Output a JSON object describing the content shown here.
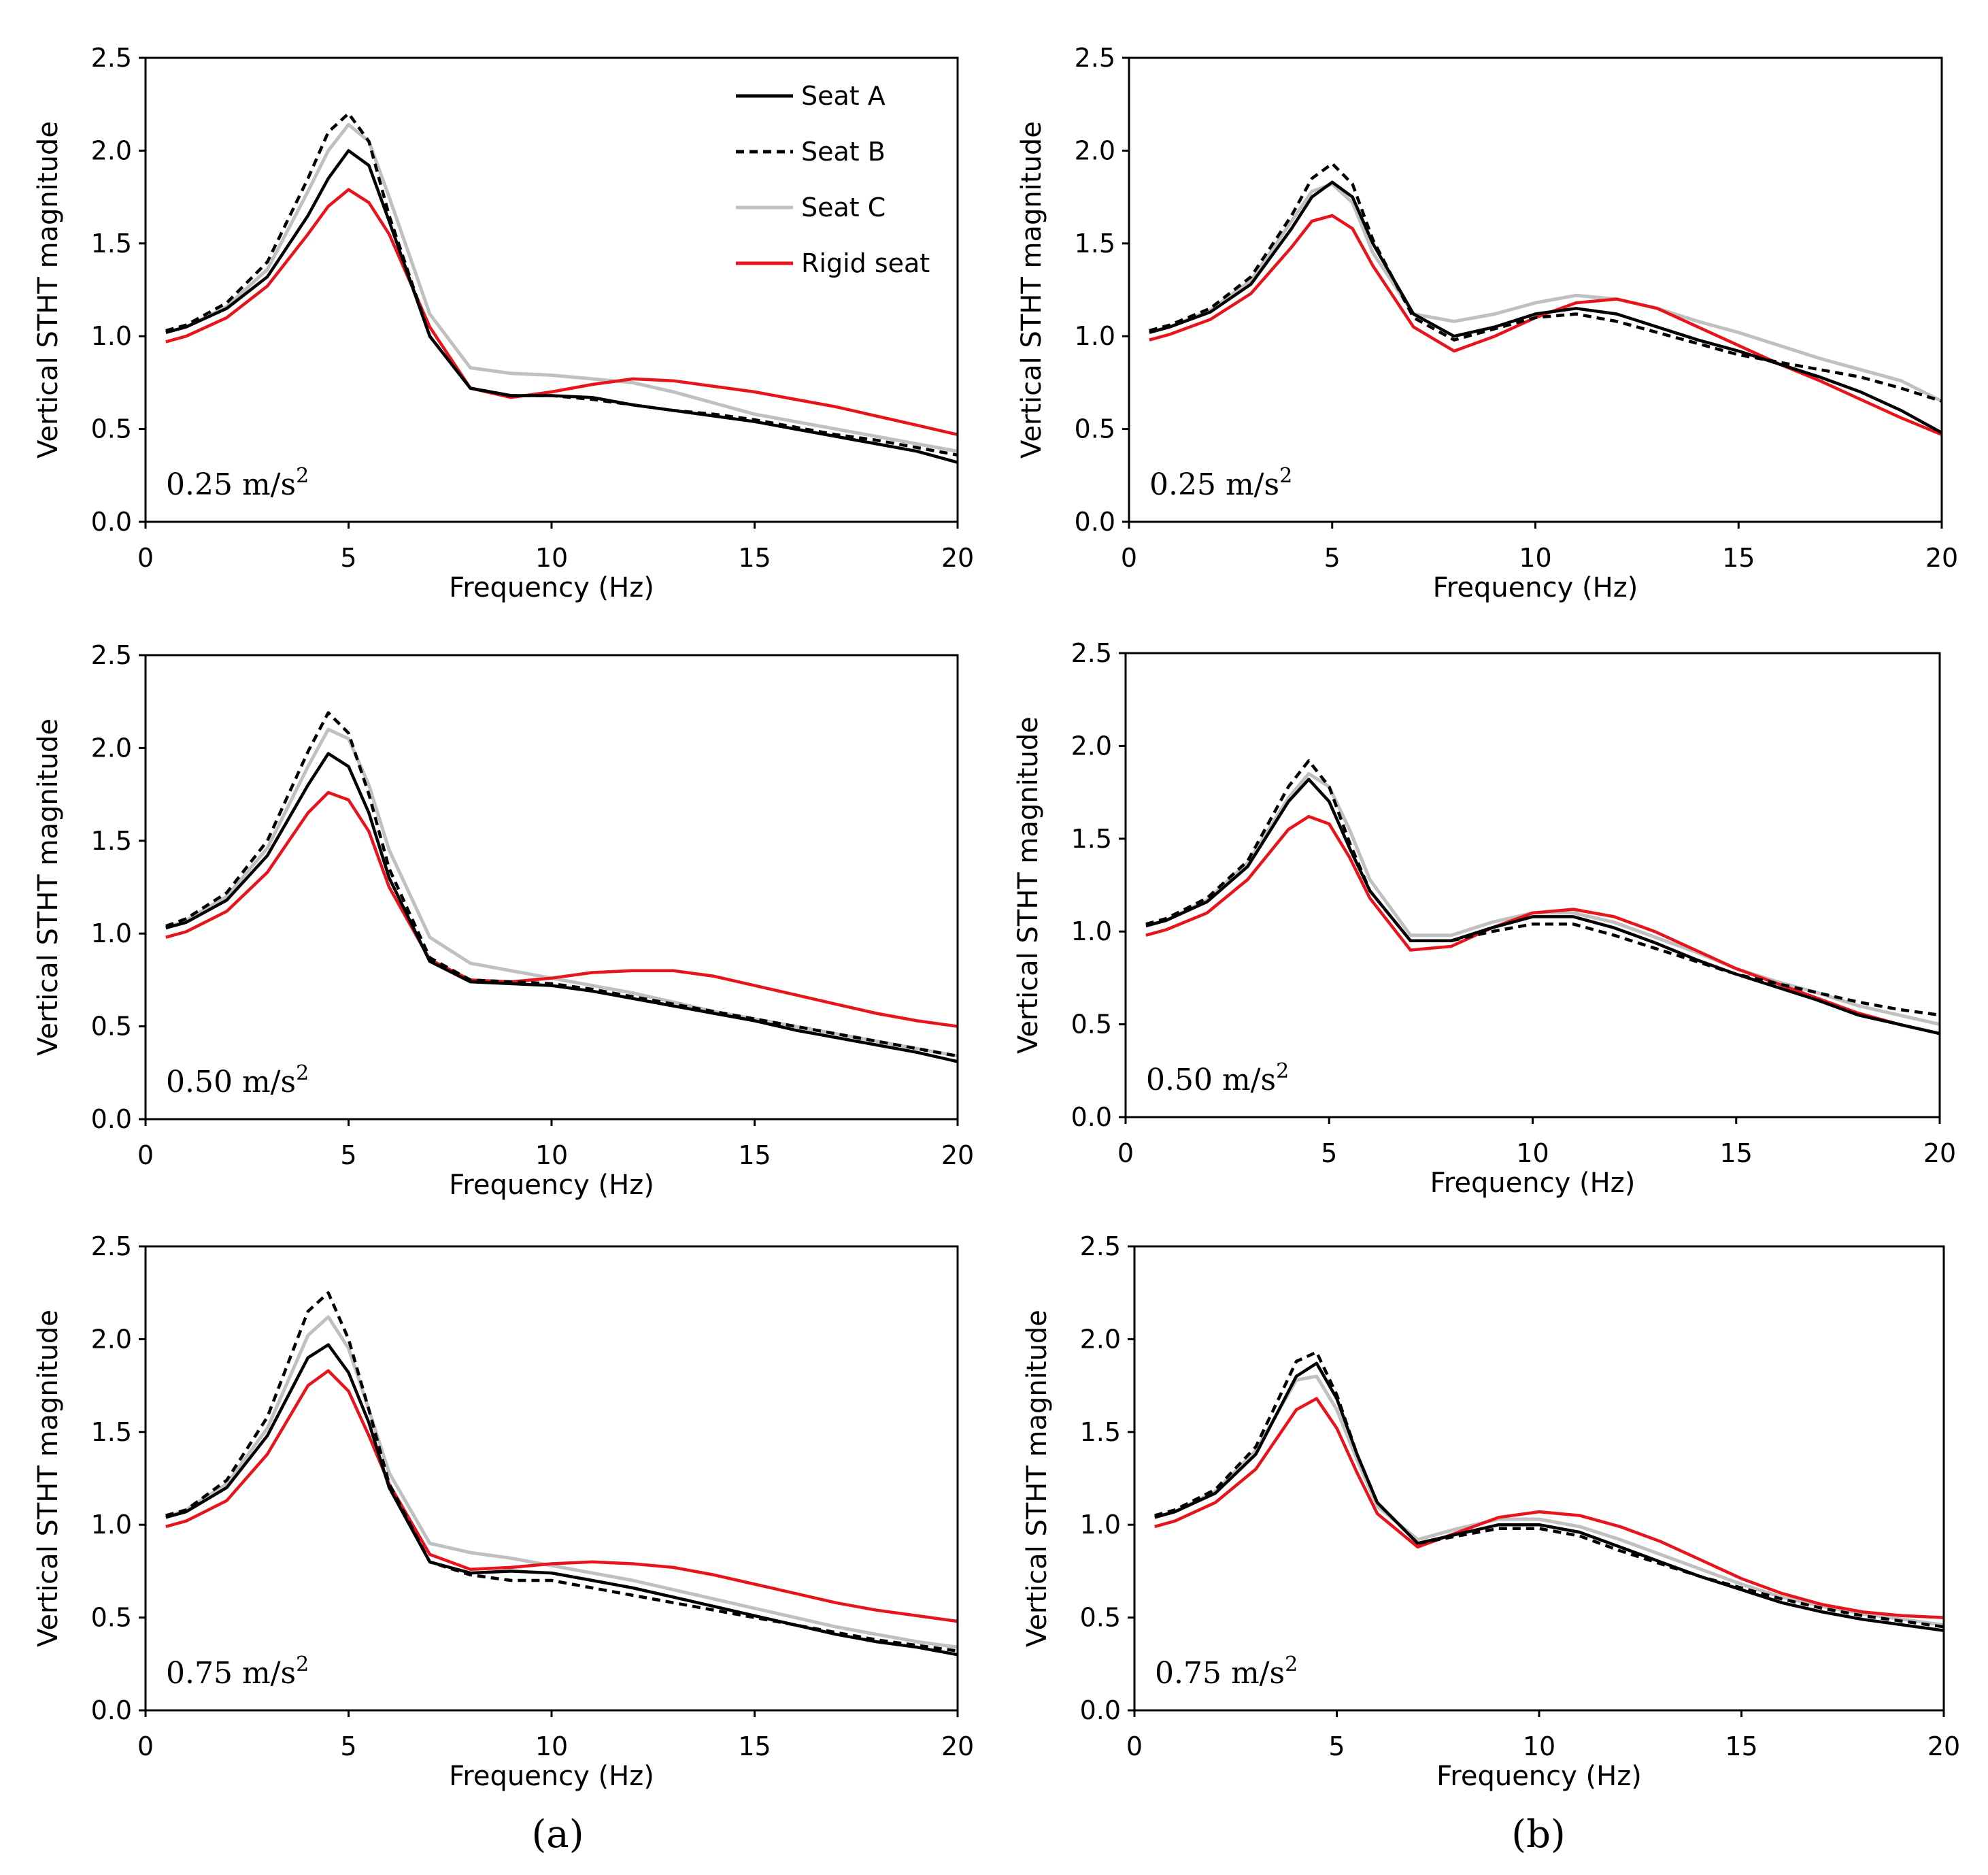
{
  "figure": {
    "caption_a": "(a)",
    "caption_b": "(b)",
    "legend": [
      {
        "name": "Seat A",
        "color": "#000000",
        "style": "solid"
      },
      {
        "name": "Seat B",
        "color": "#000000",
        "style": "dashed"
      },
      {
        "name": "Seat C",
        "color": "#c0c0c0",
        "style": "solid"
      },
      {
        "name": "Rigid seat",
        "color": "#e8141b",
        "style": "solid"
      }
    ]
  },
  "chart_data": [
    {
      "id": "a1",
      "type": "line",
      "column": "a",
      "annotation": "0.25 m/s",
      "annotation_sup": "2",
      "xlabel": "Frequency (Hz)",
      "ylabel": "Vertical STHT magnitude",
      "xlim": [
        0,
        20
      ],
      "ylim": [
        0,
        2.5
      ],
      "xticks": [
        "0",
        "5",
        "10",
        "15",
        "20"
      ],
      "yticks": [
        "0.0",
        "0.5",
        "1.0",
        "1.5",
        "2.0",
        "2.5"
      ],
      "show_legend": true,
      "x": [
        0.5,
        1,
        2,
        3,
        4,
        4.5,
        5,
        5.5,
        6,
        7,
        8,
        9,
        10,
        11,
        12,
        13,
        14,
        15,
        16,
        17,
        18,
        19,
        20
      ],
      "series": [
        {
          "name": "Seat A",
          "values": [
            1.02,
            1.05,
            1.15,
            1.32,
            1.65,
            1.85,
            2.0,
            1.92,
            1.62,
            1.0,
            0.72,
            0.68,
            0.68,
            0.67,
            0.63,
            0.6,
            0.57,
            0.54,
            0.5,
            0.46,
            0.42,
            0.38,
            0.32
          ]
        },
        {
          "name": "Seat B",
          "values": [
            1.03,
            1.06,
            1.18,
            1.4,
            1.85,
            2.1,
            2.2,
            2.05,
            1.65,
            1.0,
            0.72,
            0.68,
            0.68,
            0.66,
            0.63,
            0.6,
            0.58,
            0.55,
            0.51,
            0.47,
            0.44,
            0.4,
            0.36
          ]
        },
        {
          "name": "Seat C",
          "values": [
            1.02,
            1.05,
            1.16,
            1.36,
            1.78,
            2.0,
            2.14,
            2.05,
            1.75,
            1.12,
            0.83,
            0.8,
            0.79,
            0.77,
            0.75,
            0.7,
            0.64,
            0.58,
            0.54,
            0.5,
            0.46,
            0.42,
            0.38
          ]
        },
        {
          "name": "Rigid seat",
          "values": [
            0.97,
            1.0,
            1.1,
            1.27,
            1.55,
            1.7,
            1.79,
            1.72,
            1.55,
            1.05,
            0.72,
            0.67,
            0.7,
            0.74,
            0.77,
            0.76,
            0.73,
            0.7,
            0.66,
            0.62,
            0.57,
            0.52,
            0.47
          ]
        }
      ]
    },
    {
      "id": "b1",
      "type": "line",
      "column": "b",
      "annotation": "0.25 m/s",
      "annotation_sup": "2",
      "xlabel": "Frequency (Hz)",
      "ylabel": "Vertical STHT magnitude",
      "xlim": [
        0,
        20
      ],
      "ylim": [
        0,
        2.5
      ],
      "xticks": [
        "0",
        "5",
        "10",
        "15",
        "20"
      ],
      "yticks": [
        "0.0",
        "0.5",
        "1.0",
        "1.5",
        "2.0",
        "2.5"
      ],
      "show_legend": false,
      "x": [
        0.5,
        1,
        2,
        3,
        4,
        4.5,
        5,
        5.5,
        6,
        7,
        8,
        9,
        10,
        11,
        12,
        13,
        14,
        15,
        16,
        17,
        18,
        19,
        20
      ],
      "series": [
        {
          "name": "Seat A",
          "values": [
            1.02,
            1.05,
            1.13,
            1.28,
            1.58,
            1.75,
            1.83,
            1.75,
            1.5,
            1.12,
            1.0,
            1.05,
            1.12,
            1.15,
            1.12,
            1.05,
            0.98,
            0.92,
            0.85,
            0.78,
            0.7,
            0.6,
            0.48
          ]
        },
        {
          "name": "Seat B",
          "values": [
            1.03,
            1.06,
            1.15,
            1.32,
            1.65,
            1.85,
            1.93,
            1.82,
            1.52,
            1.1,
            0.98,
            1.04,
            1.1,
            1.12,
            1.08,
            1.02,
            0.96,
            0.9,
            0.86,
            0.82,
            0.78,
            0.72,
            0.65
          ]
        },
        {
          "name": "Seat C",
          "values": [
            1.02,
            1.05,
            1.14,
            1.3,
            1.62,
            1.78,
            1.82,
            1.72,
            1.45,
            1.12,
            1.08,
            1.12,
            1.18,
            1.22,
            1.2,
            1.15,
            1.08,
            1.02,
            0.95,
            0.88,
            0.82,
            0.76,
            0.65
          ]
        },
        {
          "name": "Rigid seat",
          "values": [
            0.98,
            1.01,
            1.09,
            1.23,
            1.48,
            1.62,
            1.65,
            1.58,
            1.38,
            1.05,
            0.92,
            1.0,
            1.1,
            1.18,
            1.2,
            1.15,
            1.05,
            0.95,
            0.85,
            0.76,
            0.66,
            0.56,
            0.47
          ]
        }
      ]
    },
    {
      "id": "a2",
      "type": "line",
      "column": "a",
      "annotation": "0.50 m/s",
      "annotation_sup": "2",
      "xlabel": "Frequency (Hz)",
      "ylabel": "Vertical STHT magnitude",
      "xlim": [
        0,
        20
      ],
      "ylim": [
        0,
        2.5
      ],
      "xticks": [
        "0",
        "5",
        "10",
        "15",
        "20"
      ],
      "yticks": [
        "0.0",
        "0.5",
        "1.0",
        "1.5",
        "2.0",
        "2.5"
      ],
      "show_legend": false,
      "x": [
        0.5,
        1,
        2,
        3,
        4,
        4.5,
        5,
        5.5,
        6,
        7,
        8,
        9,
        10,
        11,
        12,
        13,
        14,
        15,
        16,
        17,
        18,
        19,
        20
      ],
      "series": [
        {
          "name": "Seat A",
          "values": [
            1.03,
            1.06,
            1.18,
            1.42,
            1.8,
            1.97,
            1.9,
            1.65,
            1.3,
            0.85,
            0.74,
            0.73,
            0.72,
            0.69,
            0.65,
            0.61,
            0.57,
            0.53,
            0.48,
            0.44,
            0.4,
            0.36,
            0.31
          ]
        },
        {
          "name": "Seat B",
          "values": [
            1.04,
            1.08,
            1.22,
            1.5,
            1.98,
            2.19,
            2.08,
            1.75,
            1.35,
            0.87,
            0.75,
            0.74,
            0.73,
            0.7,
            0.66,
            0.62,
            0.58,
            0.54,
            0.5,
            0.46,
            0.42,
            0.38,
            0.34
          ]
        },
        {
          "name": "Seat C",
          "values": [
            1.03,
            1.07,
            1.2,
            1.46,
            1.9,
            2.1,
            2.05,
            1.8,
            1.45,
            0.98,
            0.84,
            0.8,
            0.76,
            0.72,
            0.68,
            0.63,
            0.58,
            0.54,
            0.5,
            0.46,
            0.42,
            0.38,
            0.34
          ]
        },
        {
          "name": "Rigid seat",
          "values": [
            0.98,
            1.01,
            1.12,
            1.33,
            1.65,
            1.76,
            1.72,
            1.55,
            1.25,
            0.86,
            0.75,
            0.74,
            0.76,
            0.79,
            0.8,
            0.8,
            0.77,
            0.72,
            0.67,
            0.62,
            0.57,
            0.53,
            0.5
          ]
        }
      ]
    },
    {
      "id": "b2",
      "type": "line",
      "column": "b",
      "annotation": "0.50 m/s",
      "annotation_sup": "2",
      "xlabel": "Frequency (Hz)",
      "ylabel": "Vertical STHT magnitude",
      "xlim": [
        0,
        20
      ],
      "ylim": [
        0,
        2.5
      ],
      "xticks": [
        "0",
        "5",
        "10",
        "15",
        "20"
      ],
      "yticks": [
        "0.0",
        "0.5",
        "1.0",
        "1.5",
        "2.0",
        "2.5"
      ],
      "show_legend": false,
      "x": [
        0.5,
        1,
        2,
        3,
        4,
        4.5,
        5,
        5.5,
        6,
        7,
        8,
        9,
        10,
        11,
        12,
        13,
        14,
        15,
        16,
        17,
        18,
        19,
        20
      ],
      "series": [
        {
          "name": "Seat A",
          "values": [
            1.03,
            1.06,
            1.16,
            1.35,
            1.7,
            1.82,
            1.7,
            1.45,
            1.22,
            0.95,
            0.95,
            1.02,
            1.08,
            1.08,
            1.02,
            0.94,
            0.85,
            0.77,
            0.7,
            0.63,
            0.55,
            0.5,
            0.45
          ]
        },
        {
          "name": "Seat B",
          "values": [
            1.04,
            1.07,
            1.18,
            1.38,
            1.78,
            1.92,
            1.78,
            1.48,
            1.22,
            0.95,
            0.95,
            1.0,
            1.04,
            1.04,
            0.98,
            0.91,
            0.84,
            0.77,
            0.72,
            0.67,
            0.62,
            0.58,
            0.55
          ]
        },
        {
          "name": "Seat C",
          "values": [
            1.03,
            1.06,
            1.17,
            1.37,
            1.72,
            1.85,
            1.78,
            1.55,
            1.28,
            0.98,
            0.98,
            1.05,
            1.1,
            1.1,
            1.05,
            0.97,
            0.89,
            0.8,
            0.73,
            0.67,
            0.6,
            0.55,
            0.5
          ]
        },
        {
          "name": "Rigid seat",
          "values": [
            0.98,
            1.01,
            1.1,
            1.28,
            1.55,
            1.62,
            1.58,
            1.4,
            1.18,
            0.9,
            0.92,
            1.02,
            1.1,
            1.12,
            1.08,
            1.0,
            0.9,
            0.8,
            0.72,
            0.64,
            0.56,
            0.5,
            0.45
          ]
        }
      ]
    },
    {
      "id": "a3",
      "type": "line",
      "column": "a",
      "annotation": "0.75 m/s",
      "annotation_sup": "2",
      "xlabel": "Frequency (Hz)",
      "ylabel": "Vertical STHT magnitude",
      "xlim": [
        0,
        20
      ],
      "ylim": [
        0,
        2.5
      ],
      "xticks": [
        "0",
        "5",
        "10",
        "15",
        "20"
      ],
      "yticks": [
        "0.0",
        "0.5",
        "1.0",
        "1.5",
        "2.0",
        "2.5"
      ],
      "show_legend": false,
      "x": [
        0.5,
        1,
        2,
        3,
        4,
        4.5,
        5,
        5.5,
        6,
        7,
        8,
        9,
        10,
        11,
        12,
        13,
        14,
        15,
        16,
        17,
        18,
        19,
        20
      ],
      "series": [
        {
          "name": "Seat A",
          "values": [
            1.04,
            1.07,
            1.2,
            1.48,
            1.9,
            1.97,
            1.82,
            1.55,
            1.2,
            0.8,
            0.74,
            0.75,
            0.74,
            0.7,
            0.66,
            0.61,
            0.56,
            0.51,
            0.46,
            0.41,
            0.37,
            0.34,
            0.3
          ]
        },
        {
          "name": "Seat B",
          "values": [
            1.05,
            1.08,
            1.24,
            1.58,
            2.15,
            2.25,
            2.0,
            1.62,
            1.22,
            0.8,
            0.73,
            0.7,
            0.7,
            0.66,
            0.62,
            0.58,
            0.54,
            0.5,
            0.46,
            0.42,
            0.38,
            0.35,
            0.32
          ]
        },
        {
          "name": "Seat C",
          "values": [
            1.04,
            1.08,
            1.22,
            1.52,
            2.02,
            2.12,
            1.95,
            1.62,
            1.28,
            0.9,
            0.85,
            0.82,
            0.78,
            0.74,
            0.7,
            0.65,
            0.6,
            0.55,
            0.5,
            0.45,
            0.41,
            0.37,
            0.34
          ]
        },
        {
          "name": "Rigid seat",
          "values": [
            0.99,
            1.02,
            1.13,
            1.38,
            1.75,
            1.83,
            1.72,
            1.48,
            1.22,
            0.84,
            0.76,
            0.77,
            0.79,
            0.8,
            0.79,
            0.77,
            0.73,
            0.68,
            0.63,
            0.58,
            0.54,
            0.51,
            0.48
          ]
        }
      ]
    },
    {
      "id": "b3",
      "type": "line",
      "column": "b",
      "annotation": "0.75 m/s",
      "annotation_sup": "2",
      "xlabel": "Frequency (Hz)",
      "ylabel": "Vertical STHT magnitude",
      "xlim": [
        0,
        20
      ],
      "ylim": [
        0,
        2.5
      ],
      "xticks": [
        "0",
        "5",
        "10",
        "15",
        "20"
      ],
      "yticks": [
        "0.0",
        "0.5",
        "1.0",
        "1.5",
        "2.0",
        "2.5"
      ],
      "show_legend": false,
      "x": [
        0.5,
        1,
        2,
        3,
        4,
        4.5,
        5,
        5.5,
        6,
        7,
        8,
        9,
        10,
        11,
        12,
        13,
        14,
        15,
        16,
        17,
        18,
        19,
        20
      ],
      "series": [
        {
          "name": "Seat A",
          "values": [
            1.04,
            1.07,
            1.17,
            1.38,
            1.8,
            1.87,
            1.68,
            1.38,
            1.12,
            0.9,
            0.95,
            1.0,
            1.0,
            0.96,
            0.88,
            0.8,
            0.72,
            0.65,
            0.58,
            0.53,
            0.49,
            0.46,
            0.43
          ]
        },
        {
          "name": "Seat B",
          "values": [
            1.05,
            1.08,
            1.19,
            1.42,
            1.88,
            1.93,
            1.7,
            1.38,
            1.12,
            0.9,
            0.94,
            0.98,
            0.98,
            0.94,
            0.86,
            0.79,
            0.72,
            0.66,
            0.6,
            0.55,
            0.51,
            0.48,
            0.45
          ]
        },
        {
          "name": "Seat C",
          "values": [
            1.04,
            1.07,
            1.18,
            1.4,
            1.78,
            1.8,
            1.62,
            1.35,
            1.1,
            0.92,
            0.98,
            1.03,
            1.03,
            0.99,
            0.92,
            0.84,
            0.76,
            0.68,
            0.61,
            0.56,
            0.52,
            0.49,
            0.46
          ]
        },
        {
          "name": "Rigid seat",
          "values": [
            0.99,
            1.02,
            1.12,
            1.3,
            1.62,
            1.68,
            1.52,
            1.28,
            1.06,
            0.88,
            0.96,
            1.04,
            1.07,
            1.05,
            0.99,
            0.91,
            0.81,
            0.71,
            0.63,
            0.57,
            0.53,
            0.51,
            0.5
          ]
        }
      ]
    }
  ]
}
